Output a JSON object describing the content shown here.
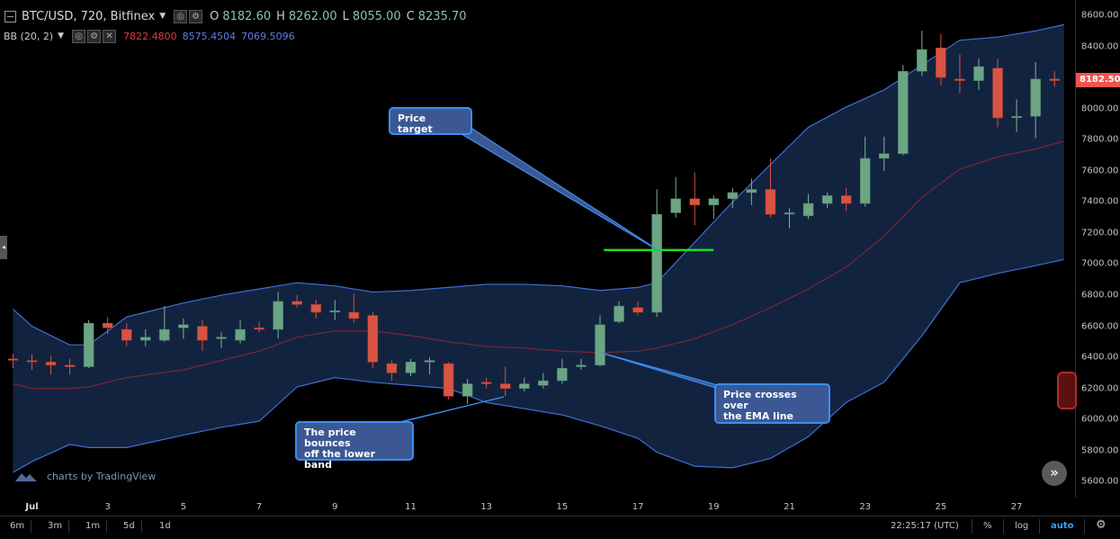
{
  "header": {
    "symbol": "BTC/USD, 720, Bitfinex",
    "ohlc": {
      "o_label": "O",
      "o": "8182.60",
      "h_label": "H",
      "h": "8262.00",
      "l_label": "L",
      "l": "8055.00",
      "c_label": "C",
      "c": "8235.70"
    },
    "bb_label": "BB (20, 2)",
    "bb_values": [
      "7822.4800",
      "8575.4504",
      "7069.5096"
    ]
  },
  "y_axis": {
    "ticks": [
      "8600.00",
      "8400.00",
      "8200.00",
      "8000.00",
      "7800.00",
      "7600.00",
      "7400.00",
      "7200.00",
      "7000.00",
      "6800.00",
      "6600.00",
      "6400.00",
      "6200.00",
      "6000.00",
      "5800.00",
      "5600.00"
    ],
    "last_price": "8182.50"
  },
  "x_axis": {
    "ticks": [
      {
        "label": "Jul",
        "x": 0,
        "bold": true
      },
      {
        "label": "3",
        "x": 4
      },
      {
        "label": "5",
        "x": 8
      },
      {
        "label": "7",
        "x": 12
      },
      {
        "label": "9",
        "x": 16
      },
      {
        "label": "11",
        "x": 20
      },
      {
        "label": "13",
        "x": 24
      },
      {
        "label": "15",
        "x": 28
      },
      {
        "label": "17",
        "x": 32
      },
      {
        "label": "19",
        "x": 36
      },
      {
        "label": "21",
        "x": 40
      },
      {
        "label": "23",
        "x": 44
      },
      {
        "label": "25",
        "x": 48
      },
      {
        "label": "27",
        "x": 52
      }
    ]
  },
  "callouts": {
    "target": "Price target",
    "bounce": "The price bounces\noff the lower band",
    "cross": "Price crosses over\nthe EMA line"
  },
  "bottom": {
    "timeframes": [
      "6m",
      "3m",
      "1m",
      "5d",
      "1d"
    ],
    "clock": "22:25:17 (UTC)",
    "percent": "%",
    "log": "log",
    "auto": "auto"
  },
  "watermark": "charts by TradingView",
  "colors": {
    "up": "#6ba583",
    "down": "#d75442",
    "band_fill": "#122340",
    "band_line": "#3f6fd1",
    "mid_line": "#7a2630",
    "target_line": "#22dd22",
    "callout_bg": "#3c5894",
    "callout_border": "#3a8ff0"
  },
  "chart_data": {
    "type": "candlestick",
    "ylim": [
      5550,
      8700
    ],
    "xlim": [
      -1,
      54.5
    ],
    "candles": [
      {
        "x": -1,
        "o": 6390,
        "h": 6425,
        "l": 6330,
        "c": 6385
      },
      {
        "x": 0,
        "o": 6380,
        "h": 6420,
        "l": 6320,
        "c": 6375
      },
      {
        "x": 1,
        "o": 6370,
        "h": 6410,
        "l": 6290,
        "c": 6350
      },
      {
        "x": 2,
        "o": 6350,
        "h": 6390,
        "l": 6290,
        "c": 6340
      },
      {
        "x": 3,
        "o": 6340,
        "h": 6640,
        "l": 6330,
        "c": 6620
      },
      {
        "x": 4,
        "o": 6620,
        "h": 6660,
        "l": 6550,
        "c": 6590
      },
      {
        "x": 5,
        "o": 6580,
        "h": 6620,
        "l": 6470,
        "c": 6510
      },
      {
        "x": 6,
        "o": 6510,
        "h": 6580,
        "l": 6470,
        "c": 6530
      },
      {
        "x": 7,
        "o": 6510,
        "h": 6730,
        "l": 6500,
        "c": 6580
      },
      {
        "x": 8,
        "o": 6590,
        "h": 6650,
        "l": 6520,
        "c": 6610
      },
      {
        "x": 9,
        "o": 6600,
        "h": 6640,
        "l": 6440,
        "c": 6510
      },
      {
        "x": 10,
        "o": 6520,
        "h": 6560,
        "l": 6460,
        "c": 6530
      },
      {
        "x": 11,
        "o": 6510,
        "h": 6640,
        "l": 6490,
        "c": 6580
      },
      {
        "x": 12,
        "o": 6590,
        "h": 6630,
        "l": 6560,
        "c": 6580
      },
      {
        "x": 13,
        "o": 6580,
        "h": 6820,
        "l": 6520,
        "c": 6760
      },
      {
        "x": 14,
        "o": 6760,
        "h": 6800,
        "l": 6720,
        "c": 6740
      },
      {
        "x": 15,
        "o": 6740,
        "h": 6770,
        "l": 6650,
        "c": 6690
      },
      {
        "x": 16,
        "o": 6700,
        "h": 6770,
        "l": 6640,
        "c": 6700
      },
      {
        "x": 17,
        "o": 6690,
        "h": 6810,
        "l": 6620,
        "c": 6650
      },
      {
        "x": 18,
        "o": 6670,
        "h": 6690,
        "l": 6330,
        "c": 6370
      },
      {
        "x": 19,
        "o": 6360,
        "h": 6380,
        "l": 6250,
        "c": 6300
      },
      {
        "x": 20,
        "o": 6300,
        "h": 6390,
        "l": 6280,
        "c": 6370
      },
      {
        "x": 21,
        "o": 6370,
        "h": 6400,
        "l": 6290,
        "c": 6380
      },
      {
        "x": 22,
        "o": 6360,
        "h": 6370,
        "l": 6130,
        "c": 6150
      },
      {
        "x": 23,
        "o": 6150,
        "h": 6260,
        "l": 6100,
        "c": 6230
      },
      {
        "x": 24,
        "o": 6240,
        "h": 6270,
        "l": 6200,
        "c": 6230
      },
      {
        "x": 25,
        "o": 6230,
        "h": 6340,
        "l": 6150,
        "c": 6200
      },
      {
        "x": 26,
        "o": 6200,
        "h": 6270,
        "l": 6180,
        "c": 6230
      },
      {
        "x": 27,
        "o": 6220,
        "h": 6300,
        "l": 6200,
        "c": 6250
      },
      {
        "x": 28,
        "o": 6250,
        "h": 6390,
        "l": 6230,
        "c": 6330
      },
      {
        "x": 29,
        "o": 6340,
        "h": 6390,
        "l": 6320,
        "c": 6350
      },
      {
        "x": 30,
        "o": 6350,
        "h": 6670,
        "l": 6340,
        "c": 6610
      },
      {
        "x": 31,
        "o": 6630,
        "h": 6760,
        "l": 6620,
        "c": 6730
      },
      {
        "x": 32,
        "o": 6720,
        "h": 6760,
        "l": 6670,
        "c": 6690
      },
      {
        "x": 33,
        "o": 6690,
        "h": 7480,
        "l": 6660,
        "c": 7320
      },
      {
        "x": 34,
        "o": 7330,
        "h": 7560,
        "l": 7300,
        "c": 7420
      },
      {
        "x": 35,
        "o": 7420,
        "h": 7590,
        "l": 7250,
        "c": 7380
      },
      {
        "x": 36,
        "o": 7380,
        "h": 7440,
        "l": 7290,
        "c": 7420
      },
      {
        "x": 37,
        "o": 7420,
        "h": 7490,
        "l": 7360,
        "c": 7460
      },
      {
        "x": 38,
        "o": 7460,
        "h": 7550,
        "l": 7380,
        "c": 7480
      },
      {
        "x": 39,
        "o": 7480,
        "h": 7680,
        "l": 7300,
        "c": 7320
      },
      {
        "x": 40,
        "o": 7330,
        "h": 7360,
        "l": 7230,
        "c": 7330
      },
      {
        "x": 41,
        "o": 7310,
        "h": 7450,
        "l": 7290,
        "c": 7390
      },
      {
        "x": 42,
        "o": 7390,
        "h": 7460,
        "l": 7360,
        "c": 7440
      },
      {
        "x": 43,
        "o": 7440,
        "h": 7490,
        "l": 7340,
        "c": 7390
      },
      {
        "x": 44,
        "o": 7390,
        "h": 7820,
        "l": 7370,
        "c": 7680
      },
      {
        "x": 45,
        "o": 7680,
        "h": 7820,
        "l": 7600,
        "c": 7710
      },
      {
        "x": 46,
        "o": 7710,
        "h": 8280,
        "l": 7700,
        "c": 8240
      },
      {
        "x": 47,
        "o": 8240,
        "h": 8500,
        "l": 8210,
        "c": 8380
      },
      {
        "x": 48,
        "o": 8390,
        "h": 8480,
        "l": 8150,
        "c": 8200
      },
      {
        "x": 49,
        "o": 8190,
        "h": 8350,
        "l": 8100,
        "c": 8180
      },
      {
        "x": 50,
        "o": 8180,
        "h": 8320,
        "l": 8120,
        "c": 8270
      },
      {
        "x": 51,
        "o": 8260,
        "h": 8320,
        "l": 7880,
        "c": 7940
      },
      {
        "x": 52,
        "o": 7950,
        "h": 8060,
        "l": 7850,
        "c": 7950
      },
      {
        "x": 53,
        "o": 7950,
        "h": 8300,
        "l": 7810,
        "c": 8190
      },
      {
        "x": 54,
        "o": 8190,
        "h": 8240,
        "l": 8140,
        "c": 8180
      }
    ],
    "bands": {
      "x": [
        -1,
        0,
        2,
        3,
        5,
        8,
        10,
        12,
        14,
        16,
        18,
        20,
        22,
        24,
        26,
        28,
        30,
        32,
        33,
        35,
        37,
        39,
        41,
        43,
        45,
        47,
        49,
        51,
        53,
        54.5
      ],
      "upper": [
        6710,
        6600,
        6480,
        6480,
        6660,
        6750,
        6800,
        6840,
        6880,
        6860,
        6820,
        6830,
        6850,
        6870,
        6870,
        6860,
        6830,
        6850,
        6880,
        7140,
        7400,
        7640,
        7880,
        8010,
        8120,
        8280,
        8440,
        8460,
        8500,
        8540
      ],
      "middle": [
        6230,
        6200,
        6200,
        6210,
        6270,
        6320,
        6380,
        6440,
        6530,
        6570,
        6570,
        6540,
        6500,
        6470,
        6460,
        6440,
        6430,
        6440,
        6460,
        6520,
        6610,
        6720,
        6840,
        6980,
        7180,
        7430,
        7610,
        7690,
        7740,
        7790
      ],
      "lower": [
        5660,
        5730,
        5840,
        5820,
        5820,
        5900,
        5950,
        5990,
        6210,
        6270,
        6240,
        6220,
        6200,
        6110,
        6070,
        6030,
        5960,
        5880,
        5790,
        5700,
        5690,
        5750,
        5890,
        6110,
        6240,
        6540,
        6880,
        6940,
        6990,
        7030
      ]
    },
    "target_line": {
      "price": 7090,
      "x_start": 30.2,
      "x_end": 36
    }
  }
}
